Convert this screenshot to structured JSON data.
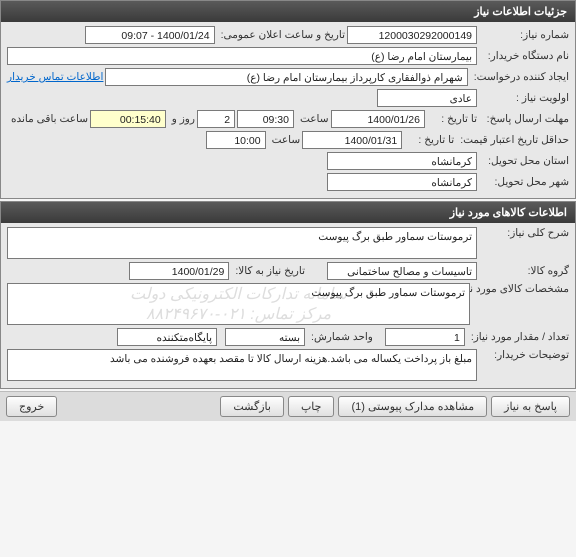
{
  "panel1": {
    "title": "جزئیات اطلاعات نیاز",
    "request_number_label": "شماره نیاز:",
    "request_number": "1200030292000149",
    "announce_time_label": "تاریخ و ساعت اعلان عمومی:",
    "announce_time": "1400/01/24 - 09:07",
    "buyer_label": "نام دستگاه خریدار:",
    "buyer": "بیمارستان امام رضا (ع)",
    "creator_label": "ایجاد کننده درخواست:",
    "creator": "شهرام ذوالفقاری کارپرداز بیمارستان امام رضا (ع)",
    "contact_link": "اطلاعات تماس خریدار",
    "priority_label": "اولویت نیاز :",
    "priority": "عادی",
    "deadline_label": "مهلت ارسال پاسخ:",
    "to_date_label": "تا تاریخ :",
    "deadline_date": "1400/01/26",
    "time_label": "ساعت",
    "deadline_time": "09:30",
    "days_count": "2",
    "days_label": "روز و",
    "remain_time": "00:15:40",
    "remain_label": "ساعت باقی مانده",
    "validity_label": "حداقل تاریخ اعتبار قیمت:",
    "validity_date": "1400/01/31",
    "validity_time": "10:00",
    "province_label": "استان محل تحویل:",
    "province": "کرمانشاه",
    "city_label": "شهر محل تحویل:",
    "city": "کرمانشاه"
  },
  "panel2": {
    "title": "اطلاعات کالاهای مورد نیاز",
    "desc_label": "شرح کلی نیاز:",
    "desc": "ترموستات سماور طبق برگ پیوست",
    "group_label": "گروه کالا:",
    "group": "تاسیسات و مصالح ساختمانی",
    "need_date_label": "تاریخ نیاز به کالا:",
    "need_date": "1400/01/29",
    "spec_label": "مشخصات کالای مورد نیاز:",
    "spec": "ترموستات سماور طبق برگ پیوست",
    "watermark1": "سامانه تدارکات الکترونیکی دولت",
    "watermark2": "مرکز تماس: ۰۲۱-۸۸۲۴۹۶۷۰",
    "qty_label": "تعداد / مقدار مورد نیاز:",
    "qty": "1",
    "unit_label": "واحد شمارش:",
    "unit": "بسته",
    "package_label": "پایگاه‌متکننده",
    "notes_label": "توضیحات خریدار:",
    "notes": "مبلغ باز پرداخت یکساله می باشد.هزینه ارسال کالا تا مقصد بعهده فروشنده می باشد"
  },
  "buttons": {
    "respond": "پاسخ به نیاز",
    "attachments": "مشاهده مدارک پیوستی (1)",
    "print": "چاپ",
    "back": "بازگشت",
    "exit": "خروج"
  }
}
